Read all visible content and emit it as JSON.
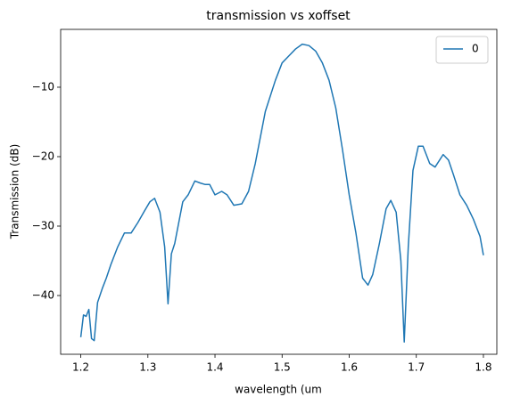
{
  "chart_data": {
    "type": "line",
    "title": "transmission vs xoffset",
    "xlabel": "wavelength (um",
    "ylabel": "Transmission (dB)",
    "x": [
      1.2,
      1.204,
      1.208,
      1.212,
      1.216,
      1.22,
      1.225,
      1.232,
      1.238,
      1.245,
      1.255,
      1.265,
      1.275,
      1.285,
      1.295,
      1.303,
      1.31,
      1.318,
      1.325,
      1.33,
      1.335,
      1.34,
      1.345,
      1.352,
      1.36,
      1.37,
      1.378,
      1.385,
      1.392,
      1.4,
      1.41,
      1.418,
      1.428,
      1.44,
      1.45,
      1.46,
      1.475,
      1.49,
      1.5,
      1.51,
      1.52,
      1.53,
      1.54,
      1.55,
      1.56,
      1.57,
      1.58,
      1.59,
      1.6,
      1.61,
      1.62,
      1.628,
      1.635,
      1.645,
      1.655,
      1.662,
      1.67,
      1.677,
      1.682,
      1.688,
      1.695,
      1.703,
      1.71,
      1.72,
      1.728,
      1.74,
      1.748,
      1.755,
      1.765,
      1.775,
      1.785,
      1.795,
      1.8
    ],
    "series": [
      {
        "name": "0",
        "color": "#1f77b4",
        "values": [
          -46.0,
          -42.8,
          -43.0,
          -42.0,
          -46.2,
          -46.5,
          -41.0,
          -39.0,
          -37.5,
          -35.5,
          -33.0,
          -31.0,
          -31.0,
          -29.5,
          -27.8,
          -26.5,
          -26.0,
          -28.0,
          -33.0,
          -41.2,
          -34.0,
          -32.5,
          -30.0,
          -26.5,
          -25.5,
          -23.5,
          -23.8,
          -24.0,
          -24.0,
          -25.5,
          -25.0,
          -25.5,
          -27.0,
          -26.8,
          -25.0,
          -21.0,
          -13.5,
          -9.0,
          -6.5,
          -5.5,
          -4.5,
          -3.8,
          -4.0,
          -4.8,
          -6.5,
          -9.0,
          -13.0,
          -19.0,
          -25.5,
          -31.0,
          -37.5,
          -38.5,
          -37.0,
          -32.5,
          -27.5,
          -26.3,
          -28.0,
          -35.0,
          -46.7,
          -33.0,
          -22.0,
          -18.5,
          -18.5,
          -21.0,
          -21.5,
          -19.7,
          -20.5,
          -22.5,
          -25.5,
          -27.0,
          -29.0,
          -31.5,
          -34.2
        ]
      }
    ],
    "xlim": [
      1.17,
      1.82
    ],
    "ylim": [
      -48.46,
      -1.67
    ],
    "xticks": [
      1.2,
      1.3,
      1.4,
      1.5,
      1.6,
      1.7,
      1.8
    ],
    "yticks": [
      {
        "value": -40,
        "label": "−40"
      },
      {
        "value": -30,
        "label": "−30"
      },
      {
        "value": -20,
        "label": "−20"
      },
      {
        "value": -10,
        "label": "−10"
      }
    ],
    "legend": "upper right"
  }
}
